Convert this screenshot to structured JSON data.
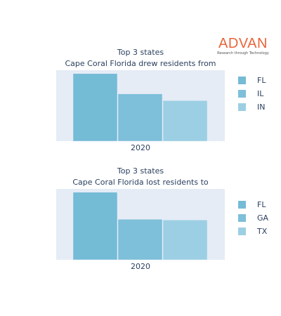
{
  "logo": {
    "name": "ADVAN",
    "tagline": "Research through Technology",
    "color": "#e8663a"
  },
  "colors": {
    "plot_bg": "#e5ecf6",
    "text": "#2a3f5f",
    "series": [
      "#74bbd6",
      "#7ebfd9",
      "#9ccfe3"
    ]
  },
  "chart_data": [
    {
      "type": "bar",
      "title": [
        "Top 3 states",
        "Cape Coral Florida drew residents from"
      ],
      "categories": [
        "2020"
      ],
      "series": [
        {
          "name": "FL",
          "values": [
            100
          ]
        },
        {
          "name": "IL",
          "values": [
            70
          ]
        },
        {
          "name": "IN",
          "values": [
            60
          ]
        }
      ],
      "ylim": [
        0,
        105
      ],
      "grid": false,
      "legend": "right"
    },
    {
      "type": "bar",
      "title": [
        "Top 3 states",
        "Cape Coral Florida lost residents to"
      ],
      "categories": [
        "2020"
      ],
      "series": [
        {
          "name": "FL",
          "values": [
            100
          ]
        },
        {
          "name": "GA",
          "values": [
            60
          ]
        },
        {
          "name": "TX",
          "values": [
            59
          ]
        }
      ],
      "ylim": [
        0,
        105
      ],
      "grid": false,
      "legend": "right"
    }
  ]
}
